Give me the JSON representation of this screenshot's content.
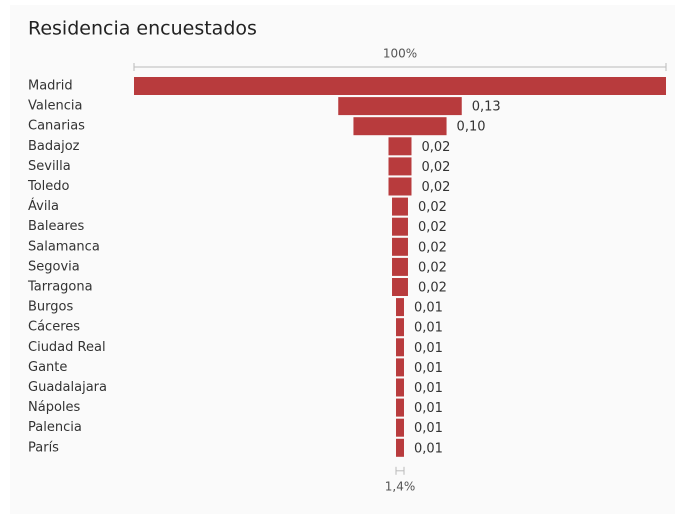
{
  "chart_data": {
    "type": "funnel",
    "title": "Residencia encuestados",
    "categories": [
      "Madrid",
      "Valencia",
      "Canarias",
      "Badajoz",
      "Sevilla",
      "Toledo",
      "Ávila",
      "Baleares",
      "Salamanca",
      "Segovia",
      "Tarragona",
      "Burgos",
      "Cáceres",
      "Ciudad Real",
      "Gante",
      "Guadalajara",
      "Nápoles",
      "Palencia",
      "París"
    ],
    "values": [
      0.56,
      0.13,
      0.098,
      0.0242,
      0.0242,
      0.0242,
      0.0168,
      0.0168,
      0.0168,
      0.0168,
      0.0168,
      0.0084,
      0.0084,
      0.0084,
      0.0084,
      0.0084,
      0.0084,
      0.0084,
      0.0084
    ],
    "value_labels": [
      null,
      "0,13",
      "0,10",
      "0,02",
      "0,02",
      "0,02",
      "0,02",
      "0,02",
      "0,02",
      "0,02",
      "0,02",
      "0,01",
      "0,01",
      "0,01",
      "0,01",
      "0,01",
      "0,01",
      "0,01",
      "0,01"
    ],
    "max_label": "100%",
    "min_label": "1,4%",
    "color": "#b83b3d"
  }
}
